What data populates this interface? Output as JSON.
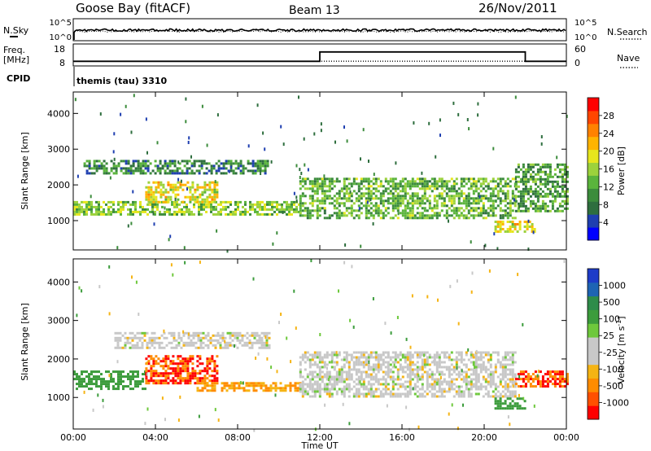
{
  "header": {
    "station": "Goose Bay (fitACF)",
    "beam": "Beam 13",
    "date": "26/Nov/2011"
  },
  "noise": {
    "left_label": "N.Sky",
    "right_label": "N.Search",
    "ticks_left": [
      "10^5",
      "10^0"
    ],
    "ticks_right": [
      "10^5",
      "10^0"
    ]
  },
  "freq": {
    "left_label": "Freq.",
    "left_unit": "[MHz]",
    "right_label": "Nave",
    "ticks_left": [
      "18",
      "8"
    ],
    "ticks_right": [
      "60",
      "0"
    ]
  },
  "cpid": {
    "label": "CPID",
    "program": "themis (tau) 3310"
  },
  "xaxis": {
    "label": "Time UT",
    "ticks": [
      "00:00",
      "04:00",
      "08:00",
      "12:00",
      "16:00",
      "20:00",
      "00:00"
    ]
  },
  "power_panel": {
    "ylabel": "Slant Range [km]",
    "yticks": [
      "4000",
      "3000",
      "2000",
      "1000"
    ],
    "colorbar_label": "Power [dB]",
    "colorbar_ticks": [
      "28",
      "24",
      "20",
      "16",
      "12",
      "8",
      "4"
    ],
    "colors": [
      "#0000ff",
      "#1f3fb0",
      "#2e6e3e",
      "#3c8c3c",
      "#5ab43c",
      "#9cd23c",
      "#e6e61e",
      "#ffb400",
      "#ff8200",
      "#ff4600",
      "#ff0000"
    ]
  },
  "velocity_panel": {
    "ylabel": "Slant Range [km]",
    "yticks": [
      "4000",
      "3000",
      "2000",
      "1000"
    ],
    "colorbar_label": "Velocity [m s^-1]",
    "colorbar_ticks": [
      "1000",
      "500",
      "100",
      "25",
      "-25",
      "-100",
      "-500",
      "-1000"
    ],
    "colors": [
      "#1e3cc8",
      "#1e64b4",
      "#2e8c4a",
      "#3c9c3c",
      "#6ec83c",
      "#c8c8c8",
      "#c8c8c8",
      "#f5b414",
      "#ff8c00",
      "#ff5000",
      "#ff0000"
    ]
  },
  "chart_data": {
    "type": "heatmap",
    "x_range_hours": [
      0,
      24
    ],
    "y_range_km": [
      180,
      4600
    ],
    "noise_series": [
      {
        "name": "N.Sky",
        "scale": "log",
        "level": 2.5
      },
      {
        "name": "N.Search",
        "scale": "log",
        "level": 2.2
      }
    ],
    "freq_series": {
      "freq_mhz": [
        {
          "start": "00:00",
          "end": "12:00",
          "value": 10.5
        },
        {
          "start": "12:00",
          "end": "22:00",
          "value": 15.5
        },
        {
          "start": "22:00",
          "end": "00:00",
          "value": 10.5
        }
      ],
      "nave_level": 13
    },
    "power_bands": [
      {
        "start": "00:00",
        "end": "11:00",
        "range_km": [
          1150,
          1550
        ],
        "power_db": 14
      },
      {
        "start": "00:30",
        "end": "09:30",
        "range_km": [
          2300,
          2700
        ],
        "power_db": 8
      },
      {
        "start": "03:30",
        "end": "07:00",
        "range_km": [
          1500,
          2100
        ],
        "power_db": 18
      },
      {
        "start": "11:00",
        "end": "21:30",
        "range_km": [
          1100,
          2200
        ],
        "power_db": 12
      },
      {
        "start": "21:30",
        "end": "00:00",
        "range_km": [
          1300,
          2600
        ],
        "power_db": 10
      },
      {
        "start": "20:30",
        "end": "22:30",
        "range_km": [
          700,
          1000
        ],
        "power_db": 18
      }
    ],
    "velocity_bands": [
      {
        "start": "00:00",
        "end": "03:30",
        "range_km": [
          1200,
          1700
        ],
        "velocity": 100
      },
      {
        "start": "03:30",
        "end": "07:00",
        "range_km": [
          1400,
          2100
        ],
        "velocity": -500
      },
      {
        "start": "06:00",
        "end": "11:00",
        "range_km": [
          1150,
          1400
        ],
        "velocity": -100
      },
      {
        "start": "02:00",
        "end": "09:30",
        "range_km": [
          2300,
          2700
        ],
        "velocity": 0
      },
      {
        "start": "11:00",
        "end": "21:30",
        "range_km": [
          1000,
          2200
        ],
        "velocity": 0
      },
      {
        "start": "21:30",
        "end": "00:00",
        "range_km": [
          1300,
          1700
        ],
        "velocity": -500
      },
      {
        "start": "20:30",
        "end": "22:00",
        "range_km": [
          700,
          1000
        ],
        "velocity": 100
      }
    ]
  }
}
